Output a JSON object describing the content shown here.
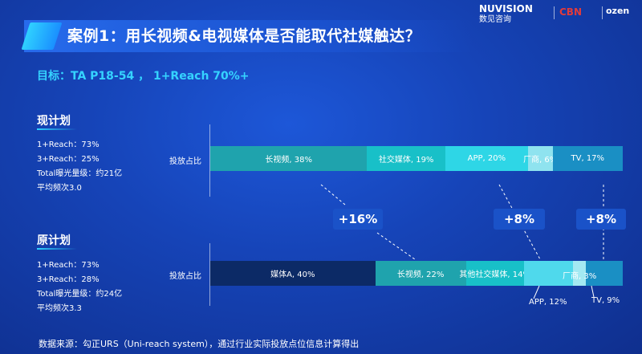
{
  "header": {
    "title": "案例1：用长视频&电视媒体是否能取代社媒触达？",
    "target": "目标：TA P18-54 ，  1+Reach 70%+"
  },
  "logos": {
    "nuvision_name": "NUVISION",
    "nuvision_sub": "数见咨询",
    "cbn": "CBN",
    "ozen": "ozen"
  },
  "current_plan": {
    "title": "现计划",
    "stats": [
      "1+Reach：73%",
      "3+Reach：25%",
      "Total曝光量级：约21亿",
      "平均频次3.0"
    ],
    "bar_label": "投放占比",
    "segments": [
      {
        "label": "长视频, 38%",
        "value": 38,
        "color": "#1fa3ad"
      },
      {
        "label": "社交媒体, 19%",
        "value": 19,
        "color": "#18c0c8"
      },
      {
        "label": "APP, 20%",
        "value": 20,
        "color": "#2ed6e6"
      },
      {
        "label": "厂商, 6%",
        "value": 6,
        "color": "#8fe3ef"
      },
      {
        "label": "TV, 17%",
        "value": 17,
        "color": "#1a8fc4"
      }
    ]
  },
  "original_plan": {
    "title": "原计划",
    "stats": [
      "1+Reach：73%",
      "3+Reach：28%",
      "Total曝光量级：约24亿",
      "平均频次3.3"
    ],
    "bar_label": "投放占比",
    "segments": [
      {
        "label": "媒体A, 40%",
        "value": 40,
        "color": "#0c2a66"
      },
      {
        "label": "长视频, 22%",
        "value": 22,
        "color": "#1fa3ad"
      },
      {
        "label": "其他社交媒体, 14%",
        "value": 14,
        "color": "#18c0c8"
      },
      {
        "label": "",
        "value": 12,
        "color": "#4fd9ec"
      },
      {
        "label": "",
        "value": 3,
        "color": "#a3e9f2"
      },
      {
        "label": "",
        "value": 9,
        "color": "#1a8fc4"
      }
    ],
    "factory_label": "厂商, 3%",
    "callouts": [
      "APP, 12%",
      "TV, 9%"
    ]
  },
  "badges": [
    "+16%",
    "+8%",
    "+8%"
  ],
  "source": "数据来源：勾正URS（Uni-reach system），通过行业实际投放点位信息计算得出",
  "colors": {
    "accent": "#35d3ff",
    "badge": "#1a52c8"
  }
}
